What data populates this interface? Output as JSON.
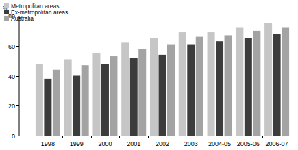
{
  "chart_data": {
    "type": "bar",
    "y_label": "%",
    "categories": [
      "1998",
      "1999",
      "2000",
      "2001",
      "2002",
      "2003",
      "2004-05",
      "2005-06",
      "2006-07"
    ],
    "series": [
      {
        "name": "Metropolitan areas",
        "color": "#c6c6c6",
        "values": [
          48,
          51,
          55,
          62,
          65,
          69,
          69,
          72,
          75
        ]
      },
      {
        "name": "Ex-metropolitan areas",
        "color": "#3c3c3c",
        "values": [
          38,
          40,
          48,
          52,
          54,
          61,
          63,
          65,
          68
        ]
      },
      {
        "name": "Australia",
        "color": "#a3a3a3",
        "values": [
          44,
          47,
          53,
          58,
          61,
          66,
          67,
          70,
          72
        ]
      }
    ],
    "ylim": [
      0,
      80
    ],
    "yticks": [
      0,
      20,
      40,
      60,
      80
    ],
    "grid": false,
    "legend": "top-left"
  }
}
